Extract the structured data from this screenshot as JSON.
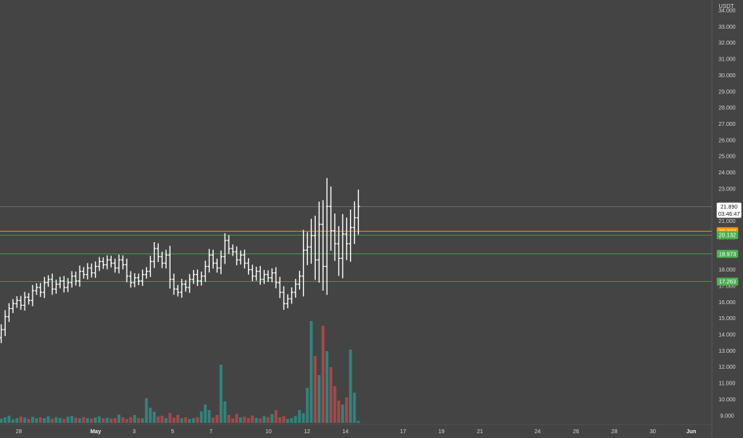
{
  "chart_data": {
    "type": "bar",
    "subtype": "ohlc-with-volume",
    "currency": "USDT",
    "colors": {
      "background": "#444444",
      "bar": "#ffffff",
      "volume_up": "#2f8f86",
      "volume_down": "#b54a4a",
      "support_line": "#4caf50",
      "price_line": "#ff9800"
    },
    "ylim": [
      8.5,
      34.6
    ],
    "y_ticks": [
      "34.000",
      "33.000",
      "32.000",
      "31.000",
      "30.000",
      "29.000",
      "28.000",
      "27.000",
      "26.000",
      "25.000",
      "24.000",
      "23.000",
      "22.000",
      "21.000",
      "20.000",
      "19.000",
      "18.000",
      "17.000",
      "16.000",
      "15.000",
      "14.000",
      "13.000",
      "12.000",
      "11.000",
      "10.000",
      "9.000"
    ],
    "x_ticks": [
      {
        "label": "26",
        "day": -5,
        "bold": false
      },
      {
        "label": "28",
        "day": -3,
        "bold": false
      },
      {
        "label": "May",
        "day": 1,
        "bold": true
      },
      {
        "label": "3",
        "day": 3,
        "bold": false
      },
      {
        "label": "5",
        "day": 5,
        "bold": false
      },
      {
        "label": "7",
        "day": 7,
        "bold": false
      },
      {
        "label": "10",
        "day": 10,
        "bold": false
      },
      {
        "label": "12",
        "day": 12,
        "bold": false
      },
      {
        "label": "14",
        "day": 14,
        "bold": false
      },
      {
        "label": "17",
        "day": 17,
        "bold": false
      },
      {
        "label": "19",
        "day": 19,
        "bold": false
      },
      {
        "label": "21",
        "day": 21,
        "bold": false
      },
      {
        "label": "24",
        "day": 24,
        "bold": false
      },
      {
        "label": "26",
        "day": 26,
        "bold": false
      },
      {
        "label": "28",
        "day": 28,
        "bold": false
      },
      {
        "label": "30",
        "day": 30,
        "bold": false
      },
      {
        "label": "Jun",
        "day": 32,
        "bold": true
      }
    ],
    "horizontal_levels": [
      {
        "value": 21.89,
        "label": "21.890",
        "countdown": "03:46:47",
        "kind": "last"
      },
      {
        "value": 20.372,
        "label": "20.372",
        "kind": "price"
      },
      {
        "value": 20.132,
        "label": "20.132",
        "kind": "support"
      },
      {
        "value": 18.973,
        "label": "18.973",
        "kind": "support"
      },
      {
        "value": 17.263,
        "label": "17.263",
        "kind": "support"
      }
    ],
    "series_close": [
      14.3,
      15.1,
      15.6,
      15.9,
      16.1,
      15.8,
      16.3,
      16.1,
      16.7,
      16.9,
      16.6,
      17.2,
      17.4,
      16.8,
      17.1,
      17.3,
      16.9,
      17.2,
      17.6,
      17.3,
      17.9,
      17.7,
      18.1,
      17.8,
      18.2,
      18.5,
      18.3,
      18.6,
      18.4,
      18.1,
      18.6,
      18.3,
      17.6,
      17.2,
      17.5,
      17.3,
      17.7,
      17.9,
      18.5,
      19.3,
      18.8,
      18.4,
      18.9,
      17.4,
      16.8,
      16.6,
      17.1,
      16.9,
      17.4,
      17.7,
      17.3,
      17.6,
      18.2,
      18.9,
      18.4,
      18.1,
      18.8,
      19.8,
      19.3,
      19.1,
      18.6,
      18.9,
      18.4,
      18.0,
      17.6,
      17.9,
      17.4,
      17.7,
      17.5,
      17.8,
      17.2,
      16.6,
      15.9,
      16.2,
      16.6,
      17.1,
      17.6,
      19.2,
      19.4,
      20.1,
      18.6,
      20.8,
      18.2,
      21.9,
      20.4,
      19.6,
      18.7,
      20.2,
      19.6,
      20.6,
      21.2,
      21.9
    ],
    "volumes": [
      0.26,
      0.34,
      0.45,
      0.22,
      0.3,
      0.4,
      0.33,
      0.25,
      0.38,
      0.29,
      0.35,
      0.3,
      0.42,
      0.27,
      0.36,
      0.31,
      0.25,
      0.39,
      0.44,
      0.33,
      0.28,
      0.37,
      0.3,
      0.26,
      0.34,
      0.41,
      0.29,
      0.32,
      0.27,
      0.3,
      0.52,
      0.35,
      0.24,
      0.37,
      0.5,
      0.3,
      0.29,
      1.55,
      0.95,
      0.7,
      0.4,
      0.45,
      0.3,
      0.62,
      0.33,
      0.5,
      0.28,
      0.35,
      0.25,
      0.29,
      0.36,
      0.72,
      1.15,
      0.8,
      0.33,
      0.5,
      3.65,
      1.35,
      0.5,
      0.28,
      0.57,
      0.35,
      0.39,
      0.3,
      0.46,
      0.32,
      0.28,
      0.42,
      0.36,
      0.55,
      0.8,
      0.35,
      0.42,
      0.25,
      0.3,
      0.43,
      0.8,
      0.6,
      2.2,
      6.4,
      4.2,
      3.0,
      6.1,
      4.5,
      3.5,
      2.3,
      1.4,
      1.15,
      1.6,
      4.6,
      1.9,
      0.12
    ]
  }
}
